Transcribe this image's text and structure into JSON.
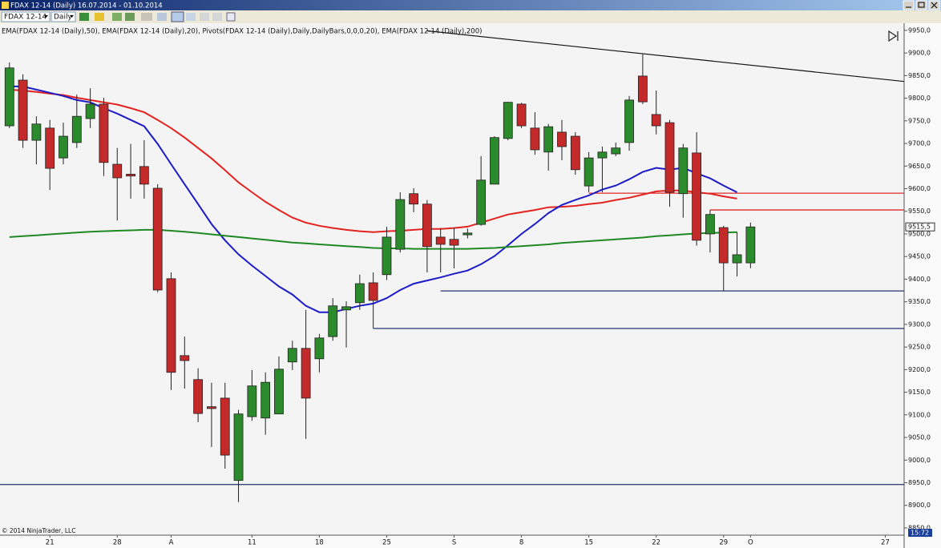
{
  "window": {
    "title": "FDAX 12-14 (Daily)  16.07.2014 - 01.10.2014",
    "instrument": "FDAX 12-14",
    "period": "Daily",
    "copyright": "© 2014 NinjaTrader, LLC",
    "clock": "15:72"
  },
  "chart_data": {
    "type": "candlestick",
    "indicator_label": "EMA(FDAX 12-14 (Daily),50), EMA(FDAX 12-14 (Daily),20), Pivots(FDAX 12-14 (Daily),Daily,DailyBars,0,0,0,20), EMA(FDAX 12-14 (Daily),200)",
    "open": [
      9739,
      9840,
      9707,
      9734,
      9668,
      9702,
      9755,
      9787,
      9654,
      9632,
      9649,
      9601,
      9401,
      9231,
      9178,
      9118,
      9137,
      8955,
      9096,
      9093,
      9102,
      9217,
      9247,
      9224,
      9273,
      9332,
      9348,
      9392,
      9410,
      9466,
      9589,
      9566,
      9493,
      9488,
      9498,
      9521,
      9610,
      9711,
      9787,
      9734,
      9681,
      9725,
      9716,
      9606,
      9668,
      9677,
      9702,
      9849,
      9764,
      9746,
      9589,
      9679,
      9500,
      9514,
      9436,
      9436
    ],
    "high": [
      9879,
      9853,
      9760,
      9752,
      9746,
      9808,
      9822,
      9801,
      9690,
      9699,
      9707,
      9610,
      9415,
      9273,
      9203,
      9171,
      9171,
      9111,
      9199,
      9194,
      9229,
      9264,
      9332,
      9279,
      9358,
      9351,
      9410,
      9415,
      9516,
      9592,
      9601,
      9575,
      9513,
      9513,
      9512,
      9672,
      9716,
      9792,
      9790,
      9769,
      9743,
      9752,
      9725,
      9681,
      9693,
      9702,
      9805,
      9897,
      9817,
      9752,
      9699,
      9725,
      9553,
      9518,
      9504,
      9525
    ],
    "low": [
      9734,
      9690,
      9654,
      9597,
      9654,
      9690,
      9734,
      9628,
      9530,
      9578,
      9578,
      9371,
      9155,
      9158,
      9084,
      9029,
      8981,
      8907,
      9087,
      9056,
      9102,
      9199,
      9047,
      9194,
      9264,
      9249,
      9332,
      9291,
      9398,
      9459,
      9548,
      9415,
      9415,
      9424,
      9490,
      9518,
      9610,
      9707,
      9734,
      9675,
      9640,
      9663,
      9631,
      9592,
      9592,
      9672,
      9684,
      9787,
      9720,
      9560,
      9536,
      9474,
      9459,
      9374,
      9406,
      9424
    ],
    "close": [
      9867,
      9707,
      9743,
      9645,
      9716,
      9760,
      9787,
      9658,
      9624,
      9628,
      9610,
      9376,
      9194,
      9220,
      9103,
      9114,
      9011,
      9102,
      9164,
      9172,
      9201,
      9247,
      9137,
      9270,
      9341,
      9339,
      9390,
      9353,
      9493,
      9576,
      9566,
      9472,
      9477,
      9475,
      9502,
      9619,
      9713,
      9791,
      9739,
      9686,
      9737,
      9693,
      9642,
      9668,
      9681,
      9690,
      9796,
      9792,
      9739,
      9592,
      9690,
      9486,
      9543,
      9436,
      9454,
      9515.5
    ],
    "last_label": "9515,5",
    "up_color": "#2b8a2b",
    "down_color": "#c42a2a",
    "series": [
      {
        "color": "#e3231f",
        "values": [
          9819,
          9817,
          9814,
          9810,
          9807,
          9801,
          9796,
          9791,
          9786,
          9778,
          9769,
          9752,
          9734,
          9713,
          9690,
          9667,
          9641,
          9614,
          9592,
          9571,
          9553,
          9536,
          9525,
          9518,
          9513,
          9509,
          9506,
          9504,
          9506,
          9507,
          9509,
          9511,
          9511,
          9513,
          9516,
          9525,
          9534,
          9543,
          9548,
          9553,
          9559,
          9560,
          9562,
          9566,
          9569,
          9575,
          9580,
          9587,
          9594,
          9596,
          9596,
          9592,
          9589,
          9583,
          9578,
          null
        ]
      },
      {
        "color": "#1b1bc8",
        "values": [
          9826,
          9826,
          9819,
          9812,
          9805,
          9796,
          9791,
          9778,
          9766,
          9752,
          9738,
          9699,
          9654,
          9610,
          9566,
          9522,
          9486,
          9455,
          9430,
          9407,
          9384,
          9366,
          9341,
          9327,
          9327,
          9334,
          9341,
          9346,
          9358,
          9376,
          9390,
          9397,
          9404,
          9412,
          9419,
          9433,
          9451,
          9475,
          9500,
          9522,
          9546,
          9564,
          9575,
          9585,
          9598,
          9607,
          9621,
          9637,
          9646,
          9642,
          9646,
          9634,
          9623,
          9607,
          9592,
          null
        ]
      },
      {
        "color": "#1f8a24",
        "values": [
          9493,
          9495,
          9497,
          9499,
          9501,
          9503,
          9505,
          9506,
          9507,
          9508,
          9509,
          9509,
          9507,
          9505,
          9502,
          9499,
          9496,
          9493,
          9490,
          9487,
          9484,
          9481,
          9479,
          9477,
          9475,
          9473,
          9471,
          9469,
          9468,
          9468,
          9467,
          9467,
          9467,
          9467,
          9467,
          9468,
          9469,
          9471,
          9473,
          9475,
          9477,
          9480,
          9482,
          9484,
          9486,
          9488,
          9490,
          9492,
          9495,
          9497,
          9499,
          9501,
          9502,
          9503,
          9504,
          null
        ]
      }
    ],
    "levels": [
      {
        "value": 8946,
        "color": "#23336e"
      },
      {
        "value": 9291,
        "color": "#23336e",
        "from": 27
      },
      {
        "value": 9374,
        "color": "#23336e",
        "from": 32
      },
      {
        "value": 9590,
        "color": "#e02a2a",
        "from": 43
      },
      {
        "value": 9553,
        "color": "#e02a2a",
        "from": 52
      }
    ],
    "trendline": {
      "x": [
        31,
        66.4
      ],
      "y": [
        9949,
        9837
      ],
      "color": "#111111"
    },
    "xlim": [
      -0.7,
      66.4
    ],
    "ylim": [
      8834,
      9964
    ],
    "xticks": [
      {
        "value": 3,
        "label": "21"
      },
      {
        "value": 8,
        "label": "28"
      },
      {
        "value": 12,
        "label": "A"
      },
      {
        "value": 18,
        "label": "11"
      },
      {
        "value": 23,
        "label": "18"
      },
      {
        "value": 28,
        "label": "25"
      },
      {
        "value": 33,
        "label": "S"
      },
      {
        "value": 38,
        "label": "8"
      },
      {
        "value": 43,
        "label": "15"
      },
      {
        "value": 48,
        "label": "22"
      },
      {
        "value": 53,
        "label": "29"
      },
      {
        "value": 55,
        "label": "O"
      },
      {
        "value": 65,
        "label": "27"
      }
    ],
    "yticks": [
      {
        "value": 9950,
        "label": "9950,0"
      },
      {
        "value": 9900,
        "label": "9900,0"
      },
      {
        "value": 9850,
        "label": "9850,0"
      },
      {
        "value": 9800,
        "label": "9800,0"
      },
      {
        "value": 9750,
        "label": "9750,0"
      },
      {
        "value": 9700,
        "label": "9700,0"
      },
      {
        "value": 9650,
        "label": "9650,0"
      },
      {
        "value": 9600,
        "label": "9600,0"
      },
      {
        "value": 9550,
        "label": "9550,0"
      },
      {
        "value": 9500,
        "label": "9500,0"
      },
      {
        "value": 9450,
        "label": "9450,0"
      },
      {
        "value": 9400,
        "label": "9400,0"
      },
      {
        "value": 9350,
        "label": "9350,0"
      },
      {
        "value": 9300,
        "label": "9300,0"
      },
      {
        "value": 9250,
        "label": "9250,0"
      },
      {
        "value": 9200,
        "label": "9200,0"
      },
      {
        "value": 9150,
        "label": "9150,0"
      },
      {
        "value": 9100,
        "label": "9100,0"
      },
      {
        "value": 9050,
        "label": "9050,0"
      },
      {
        "value": 9000,
        "label": "9000,0"
      },
      {
        "value": 8950,
        "label": "8950,0"
      },
      {
        "value": 8900,
        "label": "8900,0"
      },
      {
        "value": 8850,
        "label": "8850,0"
      }
    ]
  }
}
